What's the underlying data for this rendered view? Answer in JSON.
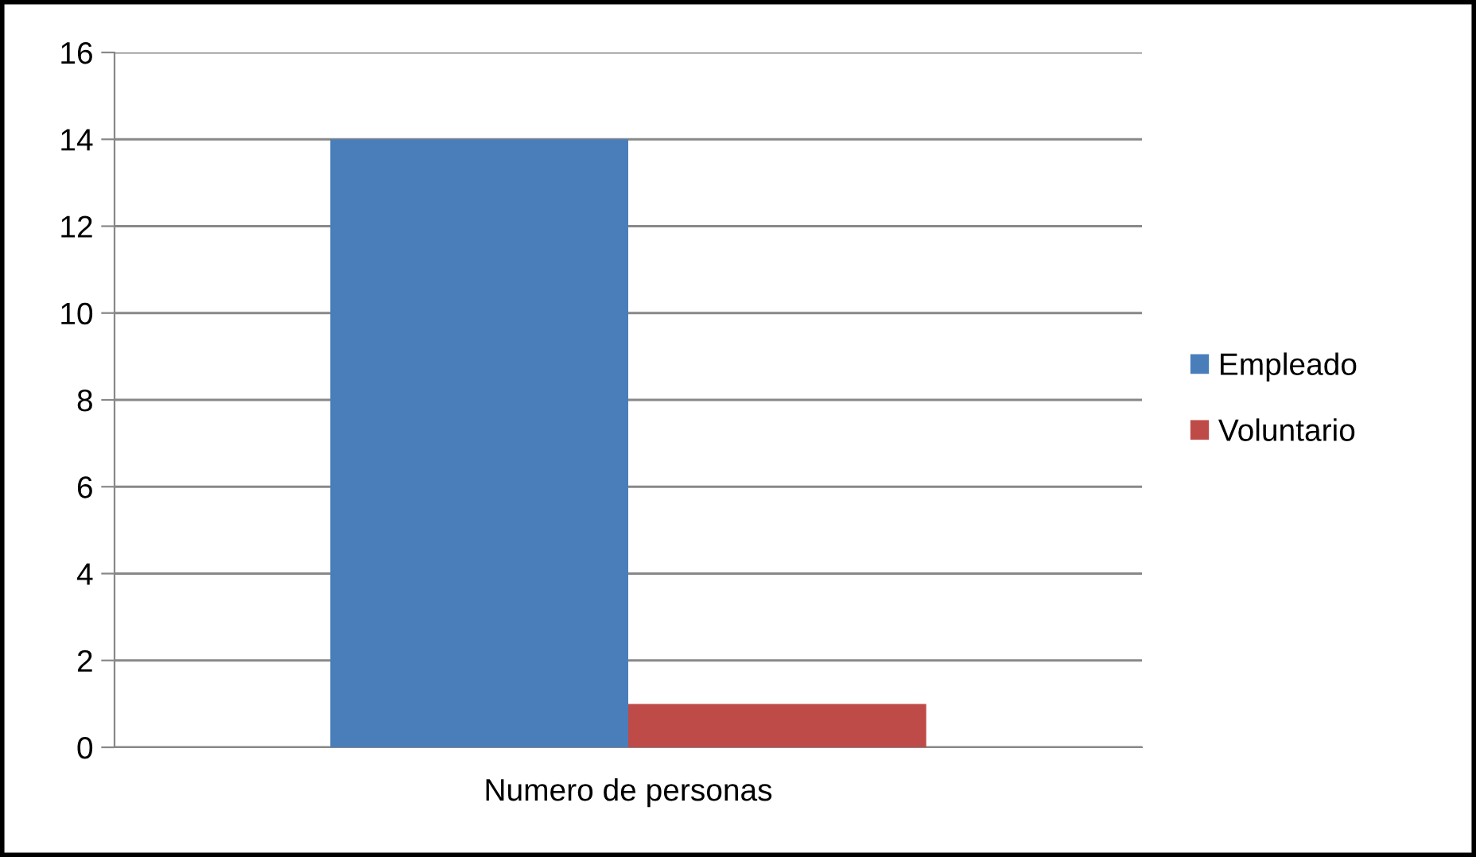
{
  "chart_data": {
    "type": "bar",
    "categories": [
      "Numero de personas"
    ],
    "series": [
      {
        "name": "Empleado",
        "color": "#4a7ebb",
        "values": [
          14
        ]
      },
      {
        "name": "Voluntario",
        "color": "#be4b48",
        "values": [
          1
        ]
      }
    ],
    "ylim": [
      0,
      16
    ],
    "yticks": [
      0,
      2,
      4,
      6,
      8,
      10,
      12,
      14,
      16
    ],
    "grid": "y",
    "legend": "right"
  }
}
